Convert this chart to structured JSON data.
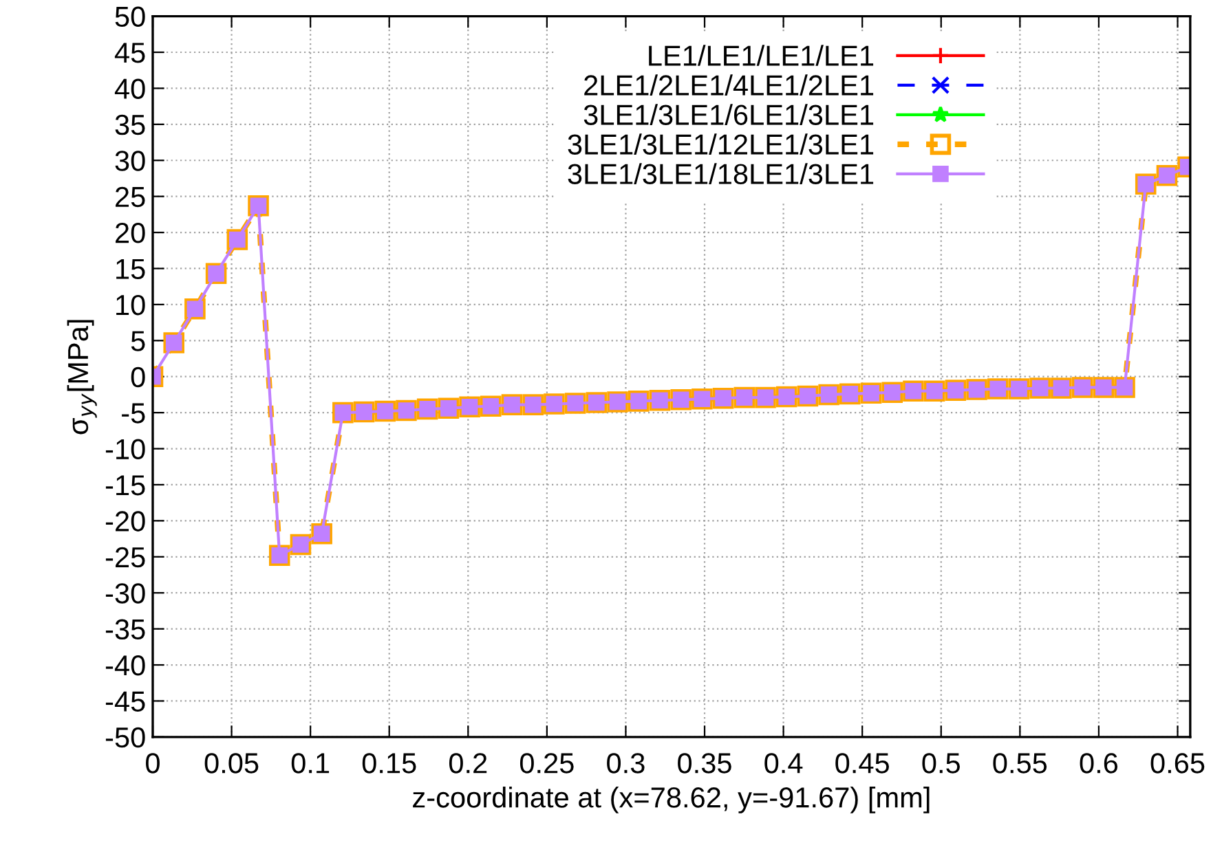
{
  "chart_data": {
    "type": "line",
    "xlabel": "z-coordinate at (x=78.62, y=-91.67) [mm]",
    "ylabel": "σ$_{yy}$[MPa]",
    "x": [
      0,
      0.0134,
      0.0268,
      0.0402,
      0.0536,
      0.067,
      0.0804,
      0.0938,
      0.1072,
      0.1206,
      0.134,
      0.1474,
      0.1608,
      0.1742,
      0.1876,
      0.201,
      0.2144,
      0.2278,
      0.2412,
      0.2546,
      0.268,
      0.2814,
      0.2948,
      0.3082,
      0.3216,
      0.335,
      0.3484,
      0.3618,
      0.3752,
      0.3886,
      0.402,
      0.4154,
      0.4288,
      0.4422,
      0.4556,
      0.469,
      0.4824,
      0.4958,
      0.5092,
      0.5226,
      0.536,
      0.5494,
      0.5628,
      0.5762,
      0.5896,
      0.603,
      0.6164,
      0.6298,
      0.6432,
      0.6566
    ],
    "series": [
      {
        "name": "LE1/LE1/LE1/LE1",
        "color": "#ff0000",
        "marker": "plus",
        "line_style": "solid",
        "values": [
          null,
          null,
          null,
          null,
          null,
          null,
          null,
          null,
          null,
          null,
          null,
          null,
          null,
          null,
          null,
          null,
          null,
          null,
          null,
          null,
          null,
          null,
          null,
          null,
          null,
          null,
          null,
          null,
          null,
          null,
          null,
          null,
          null,
          null,
          null,
          null,
          null,
          null,
          null,
          null,
          null,
          null,
          null,
          null,
          null,
          null,
          null,
          null,
          null,
          null
        ]
      },
      {
        "name": "2LE1/2LE1/4LE1/2LE1",
        "color": "#0000ff",
        "marker": "cross",
        "line_style": "dashed",
        "values": [
          null,
          null,
          null,
          null,
          null,
          null,
          null,
          null,
          null,
          null,
          null,
          null,
          null,
          null,
          null,
          null,
          null,
          null,
          null,
          null,
          null,
          null,
          null,
          null,
          null,
          null,
          null,
          null,
          null,
          null,
          null,
          null,
          null,
          null,
          null,
          null,
          null,
          null,
          null,
          null,
          null,
          null,
          null,
          null,
          null,
          null,
          null,
          null,
          null,
          null
        ]
      },
      {
        "name": "3LE1/3LE1/6LE1/3LE1",
        "color": "#00ff00",
        "marker": "star",
        "line_style": "solid",
        "values": [
          null,
          null,
          null,
          null,
          null,
          null,
          null,
          null,
          null,
          null,
          null,
          null,
          null,
          null,
          null,
          null,
          null,
          null,
          null,
          null,
          null,
          null,
          null,
          null,
          null,
          null,
          null,
          null,
          null,
          null,
          null,
          null,
          null,
          null,
          null,
          null,
          null,
          null,
          null,
          null,
          null,
          null,
          null,
          null,
          null,
          null,
          null,
          null,
          null,
          null
        ]
      },
      {
        "name": "3LE1/3LE1/12LE1/3LE1",
        "color": "#ffa500",
        "marker": "square",
        "line_style": "dotted",
        "values": [
          0,
          4.7,
          9.4,
          14.3,
          19.0,
          23.7,
          -24.8,
          -23.3,
          -21.8,
          -5.0,
          -4.9,
          -4.8,
          -4.7,
          -4.5,
          -4.4,
          -4.2,
          -4.1,
          -3.9,
          -3.9,
          -3.8,
          -3.7,
          -3.6,
          -3.5,
          -3.4,
          -3.3,
          -3.2,
          -3.1,
          -3.0,
          -2.9,
          -2.9,
          -2.8,
          -2.7,
          -2.5,
          -2.4,
          -2.3,
          -2.2,
          -2.0,
          -2.0,
          -1.9,
          -1.8,
          -1.7,
          -1.7,
          -1.6,
          -1.6,
          -1.5,
          -1.5,
          -1.5,
          26.7,
          27.9,
          29.1
        ]
      },
      {
        "name": "3LE1/3LE1/18LE1/3LE1",
        "color": "#c080ff",
        "marker": "square",
        "line_style": "solid",
        "values": [
          0,
          4.7,
          9.4,
          14.3,
          19.0,
          23.7,
          -24.8,
          -23.3,
          -21.8,
          -5.0,
          -4.9,
          -4.8,
          -4.7,
          -4.5,
          -4.4,
          -4.2,
          -4.1,
          -3.9,
          -3.9,
          -3.8,
          -3.7,
          -3.6,
          -3.5,
          -3.4,
          -3.3,
          -3.2,
          -3.1,
          -3.0,
          -2.9,
          -2.9,
          -2.8,
          -2.7,
          -2.5,
          -2.4,
          -2.3,
          -2.2,
          -2.0,
          -2.0,
          -1.9,
          -1.8,
          -1.7,
          -1.7,
          -1.6,
          -1.6,
          -1.5,
          -1.5,
          -1.5,
          26.7,
          27.9,
          29.1
        ]
      }
    ],
    "xlim": [
      0,
      0.658
    ],
    "xticks": [
      0,
      0.05,
      0.1,
      0.15,
      0.2,
      0.25,
      0.3,
      0.35,
      0.4,
      0.45,
      0.5,
      0.55,
      0.6,
      0.65
    ],
    "ylim": [
      -50,
      50
    ],
    "yticks": [
      -50,
      -45,
      -40,
      -35,
      -30,
      -25,
      -20,
      -15,
      -10,
      -5,
      0,
      5,
      10,
      15,
      20,
      25,
      30,
      35,
      40,
      45,
      50
    ],
    "grid": true,
    "legend": "top"
  }
}
